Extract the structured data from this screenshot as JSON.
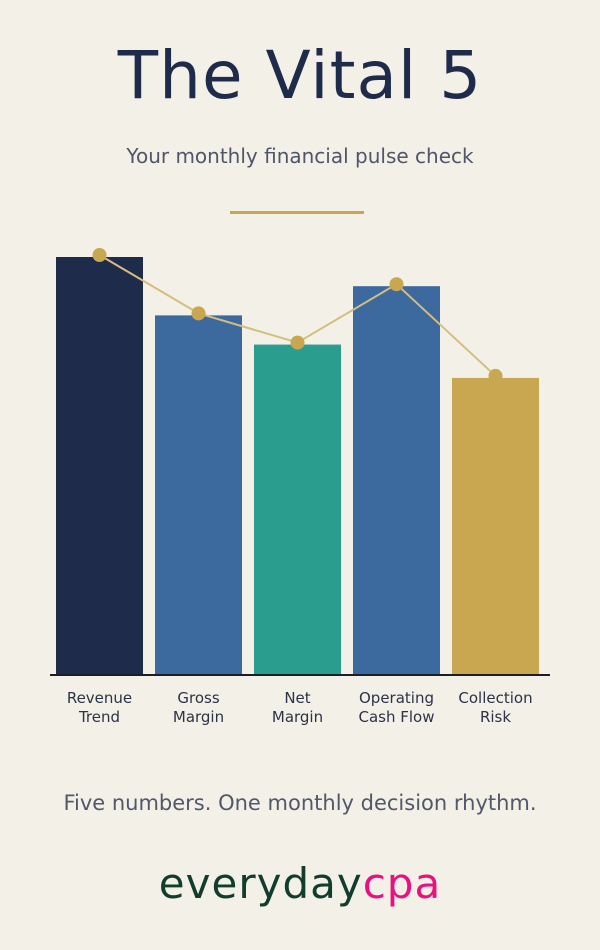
{
  "header": {
    "title": "The Vital 5",
    "subtitle": "Your monthly financial pulse check"
  },
  "colors": {
    "background": "#f3f0e7",
    "navy": "#1e2b4b",
    "blue": "#3d6a9e",
    "teal": "#2a9d8f",
    "gold": "#c9a751",
    "axis": "#1b1e27",
    "line": "#d4bd7e"
  },
  "chart_data": {
    "type": "bar",
    "categories": [
      [
        "Revenue",
        "Trend"
      ],
      [
        "Gross",
        "Margin"
      ],
      [
        "Net",
        "Margin"
      ],
      [
        "Operating",
        "Cash Flow"
      ],
      [
        "Collection",
        "Risk"
      ]
    ],
    "values": [
      100,
      86,
      79,
      93,
      71
    ],
    "bar_colors": [
      "#1e2b4b",
      "#3d6a9e",
      "#2a9d8f",
      "#3d6a9e",
      "#c9a751"
    ],
    "line_overlay": true,
    "ylim": [
      0,
      100
    ],
    "grid": false,
    "xlabel": "",
    "ylabel": ""
  },
  "footer": {
    "tagline": "Five numbers. One monthly decision rhythm.",
    "logo_part1": "everyday",
    "logo_part2": "cpa"
  }
}
